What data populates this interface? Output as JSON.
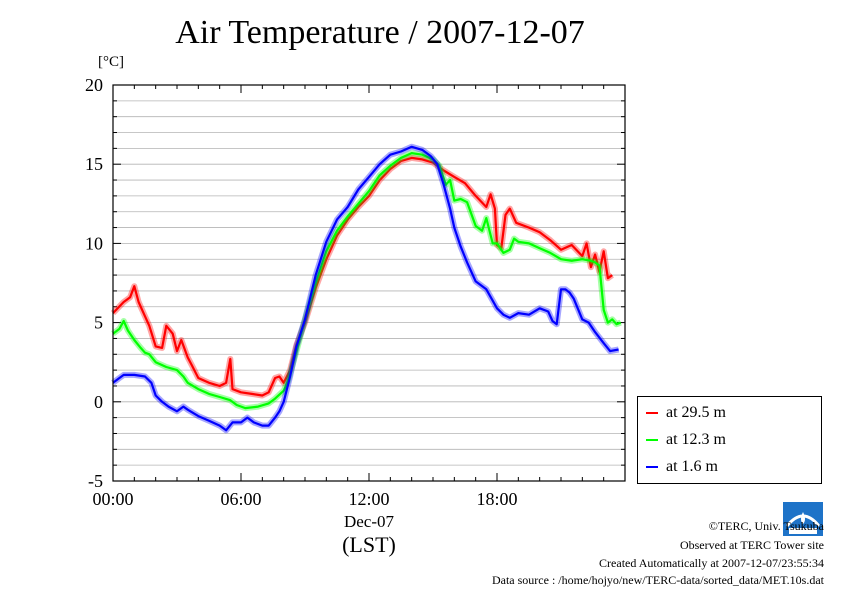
{
  "title": "Air Temperature / 2007-12-07",
  "unit_label": "[°C]",
  "footer": {
    "copyright": "©TERC, Univ. Tsukuba",
    "observed": "Observed at TERC Tower site",
    "created": "Created Automatically at 2007-12-07/23:55:34",
    "source": "Data source : /home/hojyo/new/TERC-data/sorted_data/MET.10s.dat"
  },
  "logo_icon": "terc-logo-icon",
  "chart_data": {
    "type": "line",
    "title": "Air Temperature / 2007-12-07",
    "ylabel": "[°C]",
    "xlabel": "Dec-07",
    "xlabel2": "(LST)",
    "xlim": [
      0,
      24
    ],
    "ylim": [
      -5,
      20
    ],
    "x_ticks": [
      0,
      6,
      12,
      18
    ],
    "x_tick_labels": [
      "00:00",
      "06:00",
      "12:00",
      "18:00"
    ],
    "y_ticks": [
      -5,
      0,
      5,
      10,
      15,
      20
    ],
    "y_tick_labels": [
      "-5",
      "0",
      "5",
      "10",
      "15",
      "20"
    ],
    "grid": true,
    "legend_position": "bottom-right",
    "series": [
      {
        "name": "at 29.5 m",
        "color": "#ff0000",
        "points": [
          [
            0,
            5.6
          ],
          [
            0.5,
            6.3
          ],
          [
            0.8,
            6.6
          ],
          [
            1.0,
            7.3
          ],
          [
            1.2,
            6.3
          ],
          [
            1.5,
            5.4
          ],
          [
            1.7,
            4.8
          ],
          [
            2.0,
            3.5
          ],
          [
            2.3,
            3.4
          ],
          [
            2.5,
            4.8
          ],
          [
            2.8,
            4.3
          ],
          [
            3.0,
            3.2
          ],
          [
            3.2,
            3.9
          ],
          [
            3.5,
            2.8
          ],
          [
            3.7,
            2.3
          ],
          [
            4.0,
            1.5
          ],
          [
            4.5,
            1.2
          ],
          [
            5.0,
            1.0
          ],
          [
            5.3,
            1.2
          ],
          [
            5.5,
            2.7
          ],
          [
            5.6,
            0.8
          ],
          [
            6.0,
            0.6
          ],
          [
            6.5,
            0.5
          ],
          [
            7.0,
            0.4
          ],
          [
            7.3,
            0.6
          ],
          [
            7.6,
            1.5
          ],
          [
            7.8,
            1.6
          ],
          [
            8.0,
            1.2
          ],
          [
            8.3,
            2.0
          ],
          [
            8.6,
            3.6
          ],
          [
            9.0,
            5.0
          ],
          [
            9.5,
            7.2
          ],
          [
            10.0,
            9.0
          ],
          [
            10.5,
            10.5
          ],
          [
            11.0,
            11.5
          ],
          [
            11.5,
            12.3
          ],
          [
            12.0,
            13.0
          ],
          [
            12.5,
            14.0
          ],
          [
            13.0,
            14.7
          ],
          [
            13.5,
            15.2
          ],
          [
            14.0,
            15.4
          ],
          [
            14.5,
            15.3
          ],
          [
            15.0,
            15.1
          ],
          [
            15.5,
            14.6
          ],
          [
            16.0,
            14.2
          ],
          [
            16.5,
            13.8
          ],
          [
            17.0,
            13.0
          ],
          [
            17.5,
            12.3
          ],
          [
            17.7,
            13.1
          ],
          [
            17.9,
            12.2
          ],
          [
            18.0,
            9.9
          ],
          [
            18.2,
            9.7
          ],
          [
            18.4,
            11.8
          ],
          [
            18.6,
            12.2
          ],
          [
            18.9,
            11.3
          ],
          [
            19.5,
            11.0
          ],
          [
            20.0,
            10.7
          ],
          [
            20.5,
            10.2
          ],
          [
            21.0,
            9.6
          ],
          [
            21.5,
            9.9
          ],
          [
            22.0,
            9.2
          ],
          [
            22.2,
            10.0
          ],
          [
            22.4,
            8.5
          ],
          [
            22.6,
            9.3
          ],
          [
            22.8,
            8.2
          ],
          [
            23.0,
            9.5
          ],
          [
            23.2,
            7.8
          ],
          [
            23.4,
            8.0
          ]
        ]
      },
      {
        "name": "at 12.3 m",
        "color": "#00ff00",
        "points": [
          [
            0,
            4.3
          ],
          [
            0.3,
            4.6
          ],
          [
            0.5,
            5.1
          ],
          [
            0.7,
            4.5
          ],
          [
            1.0,
            3.9
          ],
          [
            1.3,
            3.4
          ],
          [
            1.5,
            3.1
          ],
          [
            1.7,
            3.0
          ],
          [
            2.0,
            2.5
          ],
          [
            2.5,
            2.2
          ],
          [
            3.0,
            2.0
          ],
          [
            3.3,
            1.6
          ],
          [
            3.5,
            1.2
          ],
          [
            4.0,
            0.8
          ],
          [
            4.5,
            0.5
          ],
          [
            5.0,
            0.3
          ],
          [
            5.5,
            0.1
          ],
          [
            5.8,
            -0.2
          ],
          [
            6.2,
            -0.4
          ],
          [
            6.8,
            -0.3
          ],
          [
            7.3,
            -0.1
          ],
          [
            7.6,
            0.2
          ],
          [
            8.0,
            0.7
          ],
          [
            8.2,
            1.3
          ],
          [
            8.6,
            3.2
          ],
          [
            9.0,
            5.2
          ],
          [
            9.5,
            7.5
          ],
          [
            10.0,
            9.5
          ],
          [
            10.5,
            10.8
          ],
          [
            11.0,
            11.7
          ],
          [
            11.5,
            12.5
          ],
          [
            12.0,
            13.3
          ],
          [
            12.5,
            14.3
          ],
          [
            13.0,
            14.9
          ],
          [
            13.5,
            15.4
          ],
          [
            14.0,
            15.7
          ],
          [
            14.5,
            15.6
          ],
          [
            15.0,
            15.3
          ],
          [
            15.3,
            14.9
          ],
          [
            15.6,
            13.7
          ],
          [
            15.8,
            14.0
          ],
          [
            16.0,
            12.7
          ],
          [
            16.3,
            12.8
          ],
          [
            16.6,
            12.6
          ],
          [
            17.0,
            11.1
          ],
          [
            17.3,
            10.8
          ],
          [
            17.5,
            11.6
          ],
          [
            17.8,
            10.0
          ],
          [
            18.0,
            10.0
          ],
          [
            18.3,
            9.4
          ],
          [
            18.6,
            9.6
          ],
          [
            18.8,
            10.3
          ],
          [
            19.0,
            10.1
          ],
          [
            19.5,
            10.0
          ],
          [
            20.0,
            9.7
          ],
          [
            20.5,
            9.4
          ],
          [
            21.0,
            9.0
          ],
          [
            21.5,
            8.9
          ],
          [
            22.0,
            9.0
          ],
          [
            22.4,
            8.9
          ],
          [
            22.6,
            8.8
          ],
          [
            22.8,
            8.6
          ],
          [
            23.0,
            5.8
          ],
          [
            23.2,
            5.0
          ],
          [
            23.4,
            5.2
          ],
          [
            23.6,
            4.9
          ],
          [
            23.8,
            5.0
          ]
        ]
      },
      {
        "name": "at 1.6 m",
        "color": "#0000ff",
        "points": [
          [
            0,
            1.2
          ],
          [
            0.3,
            1.5
          ],
          [
            0.5,
            1.7
          ],
          [
            1.0,
            1.7
          ],
          [
            1.5,
            1.6
          ],
          [
            1.8,
            1.2
          ],
          [
            2.0,
            0.4
          ],
          [
            2.3,
            0.0
          ],
          [
            2.6,
            -0.3
          ],
          [
            3.0,
            -0.6
          ],
          [
            3.3,
            -0.3
          ],
          [
            3.5,
            -0.5
          ],
          [
            4.0,
            -0.9
          ],
          [
            4.5,
            -1.2
          ],
          [
            5.0,
            -1.5
          ],
          [
            5.3,
            -1.8
          ],
          [
            5.6,
            -1.3
          ],
          [
            6.0,
            -1.3
          ],
          [
            6.3,
            -1.0
          ],
          [
            6.6,
            -1.3
          ],
          [
            7.0,
            -1.5
          ],
          [
            7.3,
            -1.5
          ],
          [
            7.6,
            -1.0
          ],
          [
            7.8,
            -0.6
          ],
          [
            8.0,
            0.0
          ],
          [
            8.3,
            1.6
          ],
          [
            8.6,
            3.5
          ],
          [
            9.0,
            5.2
          ],
          [
            9.5,
            8.0
          ],
          [
            10.0,
            10.1
          ],
          [
            10.5,
            11.5
          ],
          [
            11.0,
            12.3
          ],
          [
            11.5,
            13.4
          ],
          [
            12.0,
            14.2
          ],
          [
            12.5,
            15.0
          ],
          [
            13.0,
            15.6
          ],
          [
            13.5,
            15.8
          ],
          [
            14.0,
            16.1
          ],
          [
            14.5,
            15.9
          ],
          [
            14.9,
            15.5
          ],
          [
            15.2,
            15.0
          ],
          [
            15.5,
            13.7
          ],
          [
            15.8,
            12.2
          ],
          [
            16.0,
            11.0
          ],
          [
            16.3,
            9.8
          ],
          [
            16.6,
            8.8
          ],
          [
            17.0,
            7.6
          ],
          [
            17.5,
            7.1
          ],
          [
            18.0,
            5.9
          ],
          [
            18.3,
            5.5
          ],
          [
            18.6,
            5.3
          ],
          [
            19.0,
            5.6
          ],
          [
            19.5,
            5.5
          ],
          [
            20.0,
            5.9
          ],
          [
            20.4,
            5.7
          ],
          [
            20.6,
            5.1
          ],
          [
            20.8,
            4.9
          ],
          [
            21.0,
            7.1
          ],
          [
            21.2,
            7.1
          ],
          [
            21.4,
            6.9
          ],
          [
            21.6,
            6.5
          ],
          [
            22.0,
            5.2
          ],
          [
            22.3,
            5.0
          ],
          [
            22.6,
            4.4
          ],
          [
            23.0,
            3.7
          ],
          [
            23.3,
            3.2
          ],
          [
            23.7,
            3.3
          ]
        ]
      }
    ]
  }
}
